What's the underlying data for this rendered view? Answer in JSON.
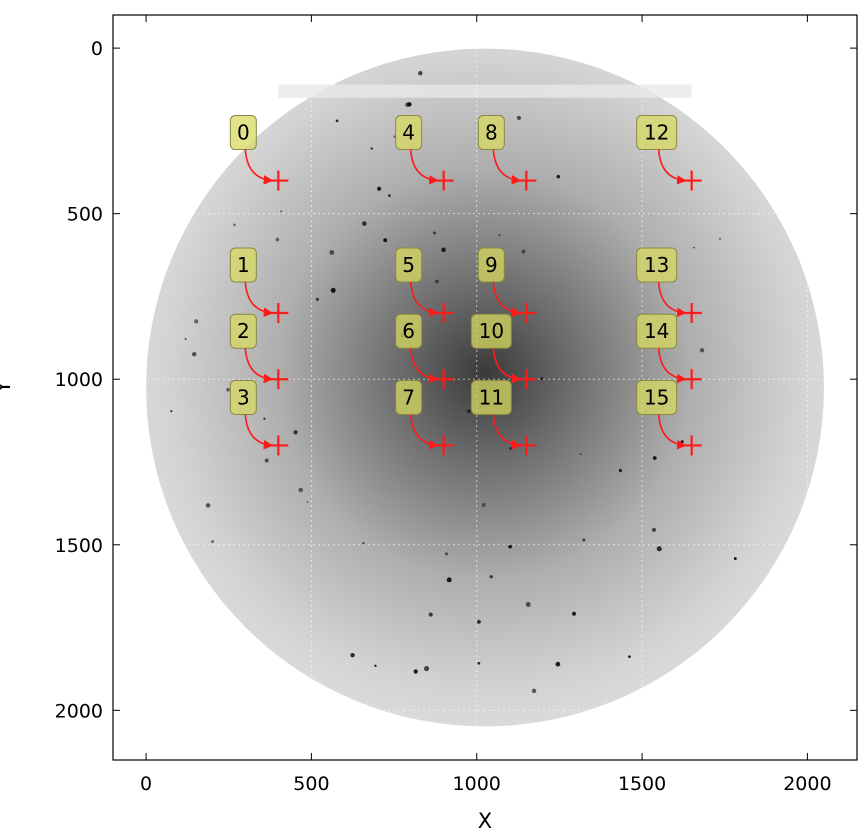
{
  "chart_data": {
    "type": "scatter",
    "title": "",
    "xlabel": "X",
    "ylabel": "Y",
    "xlim": [
      -100,
      2150
    ],
    "ylim": [
      2150,
      -100
    ],
    "y_inverted": true,
    "grid": true,
    "x_ticks": [
      0,
      500,
      1000,
      1500,
      2000
    ],
    "y_ticks": [
      0,
      500,
      1000,
      1500,
      2000
    ],
    "x_tick_labels": [
      "0",
      "500",
      "1000",
      "1500",
      "2000"
    ],
    "y_tick_labels": [
      "0",
      "500",
      "1000",
      "1500",
      "2000"
    ],
    "background_image": {
      "description_only_for_drawing": "",
      "disk_center": [
        1025,
        1025
      ],
      "disk_radius": 1025
    },
    "marker_color": "#ff1a1a",
    "label_box_color": "#d8d860",
    "points": [
      {
        "label": "0",
        "x": 400,
        "y": 400
      },
      {
        "label": "1",
        "x": 400,
        "y": 800
      },
      {
        "label": "2",
        "x": 400,
        "y": 1000
      },
      {
        "label": "3",
        "x": 400,
        "y": 1200
      },
      {
        "label": "4",
        "x": 900,
        "y": 400
      },
      {
        "label": "5",
        "x": 900,
        "y": 800
      },
      {
        "label": "6",
        "x": 900,
        "y": 1000
      },
      {
        "label": "7",
        "x": 900,
        "y": 1200
      },
      {
        "label": "8",
        "x": 1150,
        "y": 400
      },
      {
        "label": "9",
        "x": 1150,
        "y": 800
      },
      {
        "label": "10",
        "x": 1150,
        "y": 1000
      },
      {
        "label": "11",
        "x": 1150,
        "y": 1200
      },
      {
        "label": "12",
        "x": 1650,
        "y": 400
      },
      {
        "label": "13",
        "x": 1650,
        "y": 800
      },
      {
        "label": "14",
        "x": 1650,
        "y": 1000
      },
      {
        "label": "15",
        "x": 1650,
        "y": 1200
      }
    ]
  }
}
